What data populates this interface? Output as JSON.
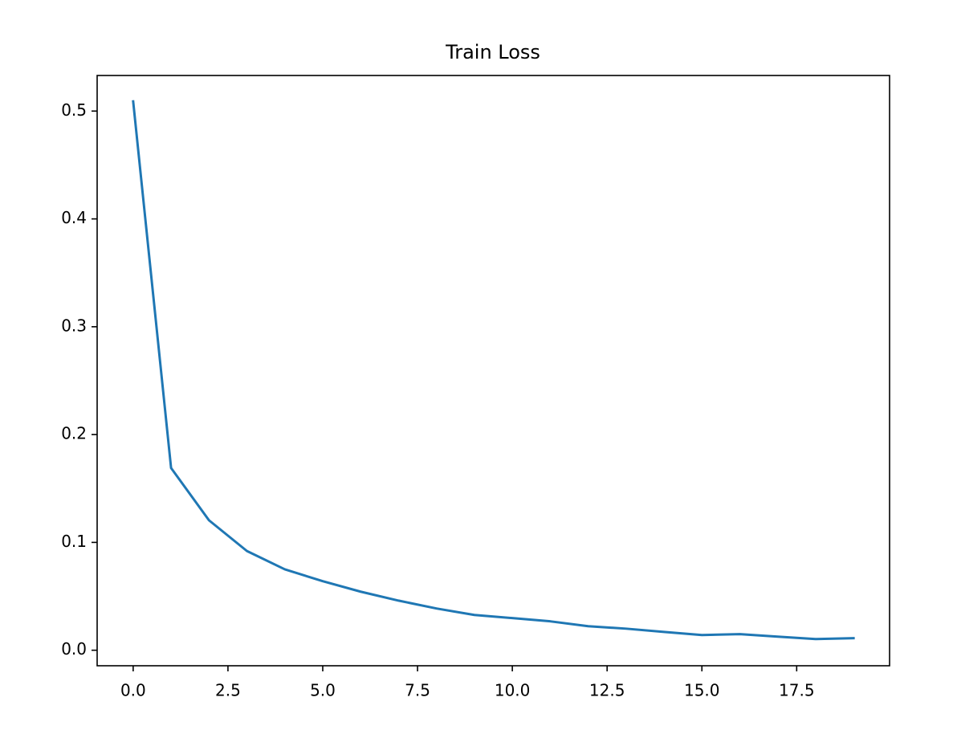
{
  "chart_data": {
    "type": "line",
    "title": "Train Loss",
    "x": [
      0,
      1,
      2,
      3,
      4,
      5,
      6,
      7,
      8,
      9,
      10,
      11,
      12,
      13,
      14,
      15,
      16,
      17,
      18,
      19
    ],
    "series": [
      {
        "color": "#1f77b4",
        "values": [
          0.509,
          0.169,
          0.1205,
          0.092,
          0.075,
          0.064,
          0.0543,
          0.046,
          0.0387,
          0.0327,
          0.0298,
          0.0268,
          0.0223,
          0.02,
          0.017,
          0.0141,
          0.0149,
          0.0126,
          0.0104,
          0.0112
        ]
      }
    ],
    "xlim": [
      -0.95,
      19.95
    ],
    "xticks": [
      {
        "value": 0,
        "label": "0.0"
      },
      2.5,
      {
        "value": 5,
        "label": "5.0"
      },
      7.5,
      {
        "value": 10,
        "label": "10.0"
      },
      12.5,
      {
        "value": 15,
        "label": "15.0"
      },
      17.5
    ],
    "ylim": [
      -0.0144,
      0.533
    ],
    "yticks": [
      {
        "value": 0,
        "label": "0.0"
      },
      0.1,
      0.2,
      0.3,
      0.4,
      0.5
    ],
    "grid": false
  }
}
